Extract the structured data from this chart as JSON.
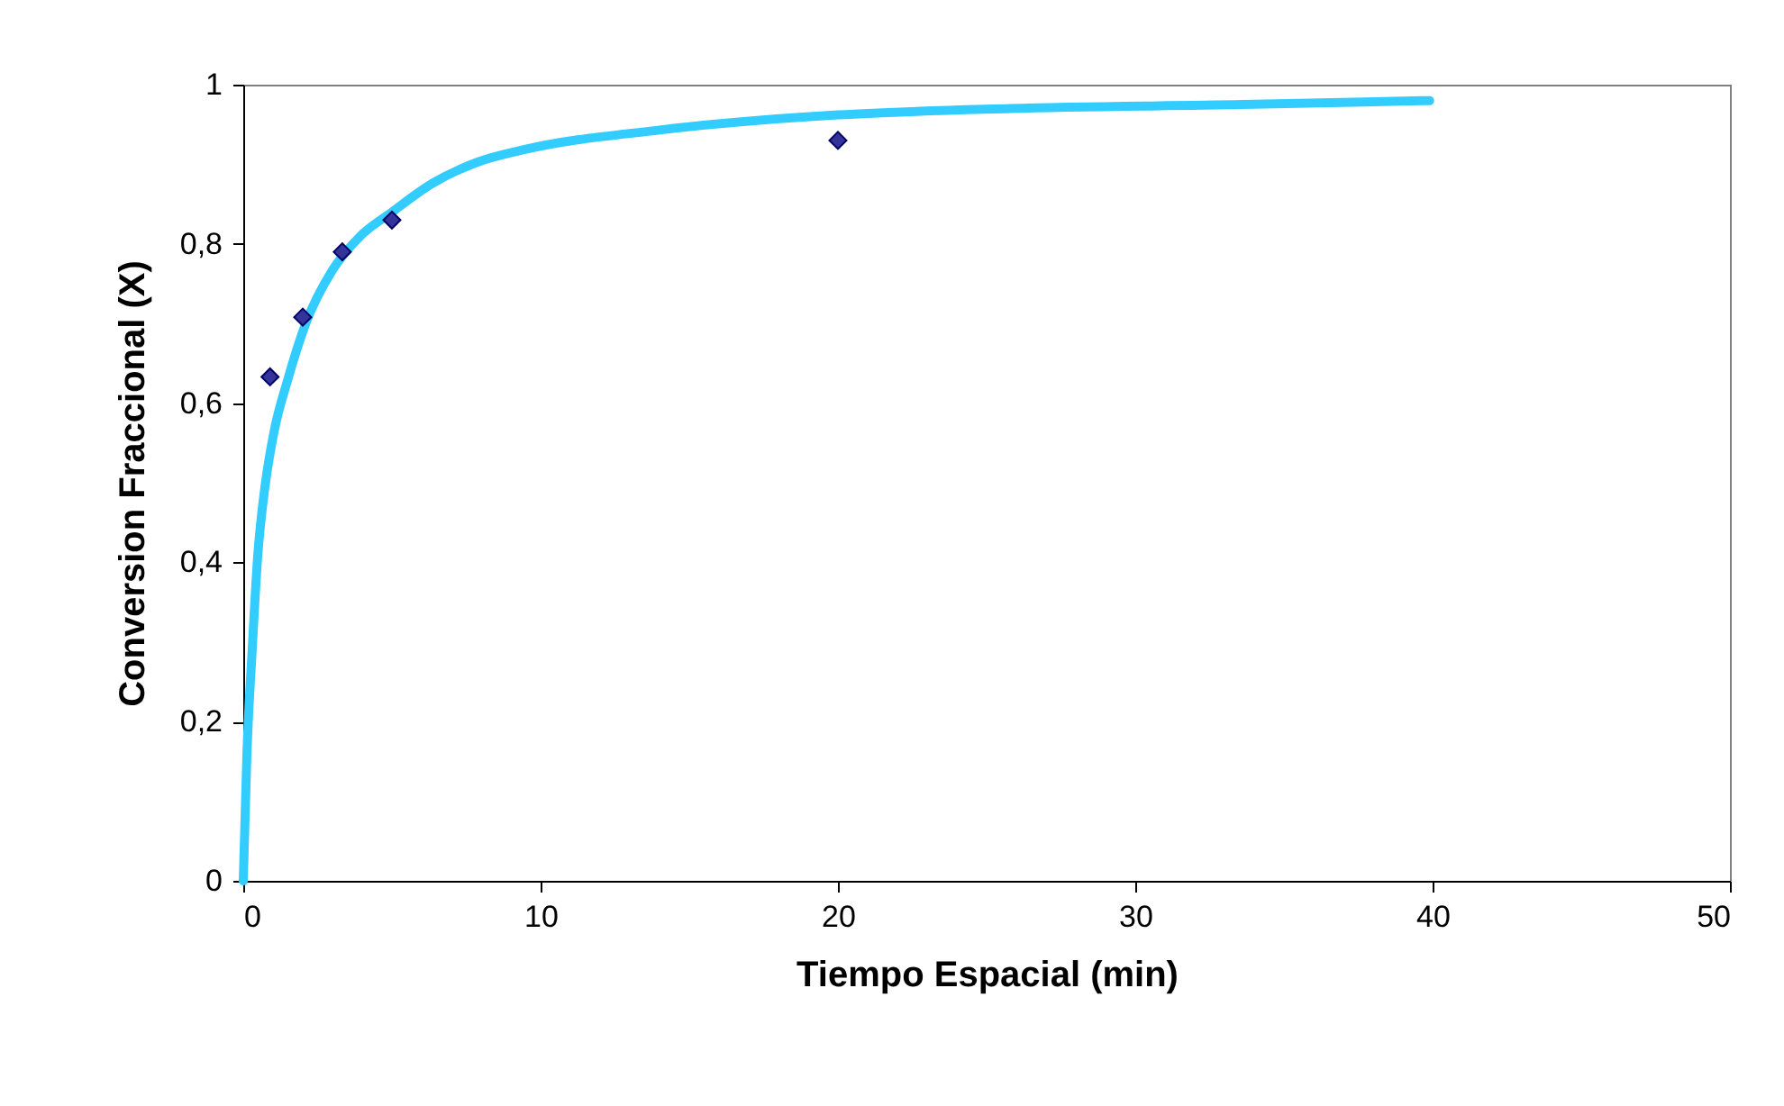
{
  "chart_data": {
    "type": "scatter",
    "xlabel": "Tiempo Espacial (min)",
    "ylabel": "Conversion Fraccional (X)",
    "xlim": [
      0,
      50
    ],
    "ylim": [
      0,
      1
    ],
    "xticks": [
      0,
      10,
      20,
      30,
      40,
      50
    ],
    "yticks": [
      0,
      {
        "value": 0.2,
        "label": "0,2"
      },
      {
        "value": 0.4,
        "label": "0,4"
      },
      {
        "value": 0.6,
        "label": "0,6"
      },
      {
        "value": 0.8,
        "label": "0,8"
      },
      1
    ],
    "grid": false,
    "line_style": "solid",
    "series": [
      {
        "type": "line",
        "color": "#33ccff",
        "x": [
          0,
          0.12,
          0.3,
          0.48,
          0.73,
          1.03,
          1.5,
          2.1,
          3.0,
          3.94,
          5,
          6.36,
          7.9,
          9.4,
          14,
          20,
          25.8,
          33.6,
          39.9
        ],
        "values": [
          0,
          0.156,
          0.29,
          0.405,
          0.495,
          0.563,
          0.63,
          0.7,
          0.767,
          0.81,
          0.84,
          0.876,
          0.903,
          0.918,
          0.943,
          0.962,
          0.97,
          0.975,
          0.98
        ]
      },
      {
        "marker": "diamond",
        "color": "#333399",
        "x": [
          0.9,
          2.0,
          3.33,
          5.0,
          20.0
        ],
        "values": [
          0.633,
          0.708,
          0.79,
          0.83,
          0.93
        ]
      }
    ]
  }
}
